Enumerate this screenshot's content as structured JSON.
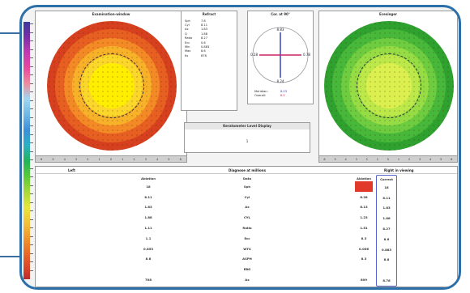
{
  "palette": {
    "frame": "#2d6fa9",
    "marker_red": "#e23a2a",
    "axis_blue": "#3344cc",
    "axis_magenta": "#cc2266"
  },
  "left_map": {
    "title": "Examination-window",
    "colors": [
      "#d6401f",
      "#e85f22",
      "#f38a26",
      "#f8b22a",
      "#fbd62b",
      "#ffee00"
    ]
  },
  "right_map": {
    "title": "Ecesinger",
    "colors": [
      "#2fa12f",
      "#48b83a",
      "#6dcc3f",
      "#96dc44",
      "#bde84a",
      "#dbf04f"
    ]
  },
  "scale_ticks": [
    "6",
    "5",
    "4",
    "3",
    "2",
    "1",
    "0",
    "1",
    "2",
    "3",
    "4",
    "5",
    "6"
  ],
  "refract": {
    "title": "Refract",
    "rows": [
      {
        "k": "Sph",
        "v": "7.8"
      },
      {
        "k": "Cyl",
        "v": "8.11"
      },
      {
        "k": "Ax",
        "v": "1.83"
      },
      {
        "k": "Q",
        "v": "1.88"
      },
      {
        "k": "Ratio",
        "v": "8.27"
      },
      {
        "k": "Ecc",
        "v": "0.6"
      },
      {
        "k": "Min",
        "v": "0.883"
      },
      {
        "k": "Max",
        "v": "8.6"
      },
      {
        "k": "Ks",
        "v": "876"
      }
    ]
  },
  "axis_panel": {
    "title": "Cor. at 90°",
    "top": "8.83",
    "left": "0.28",
    "right": "0.78",
    "bottom": "8.24",
    "footer": [
      {
        "label": "Meridian:",
        "value": "8.03"
      },
      {
        "label": "Overall:",
        "value": "8.5"
      }
    ]
  },
  "info_box": {
    "title": "Keratometer Level Display",
    "value": "1"
  },
  "table": {
    "header_left": "Left",
    "header_mid": "Diagnose at millions",
    "header_right": "Right in viewing",
    "sub_left": "Ablation",
    "sub_mid": "Data",
    "sub_right_a": "Ablation",
    "sub_right_b": "Correct",
    "left": [
      "18",
      "8.11",
      "1.83",
      "1.88",
      "1.11",
      "1.1",
      "0.853",
      "8.8",
      "",
      "708"
    ],
    "mid": [
      "Sph",
      "Cyl",
      "Ax",
      "CYL",
      "Ratio",
      "Ecc",
      "WTS",
      "ASPH",
      "EBG",
      "Ax"
    ],
    "right_a": [
      "",
      "8.28",
      "8.13",
      "1.23",
      "1.51",
      "8.3",
      "0.006",
      "8.3",
      "",
      "809"
    ],
    "right_b": [
      "18",
      "8.11",
      "1.83",
      "1.88",
      "8.27",
      "8.6",
      "0.883",
      "8.8",
      "",
      "8.76"
    ]
  }
}
